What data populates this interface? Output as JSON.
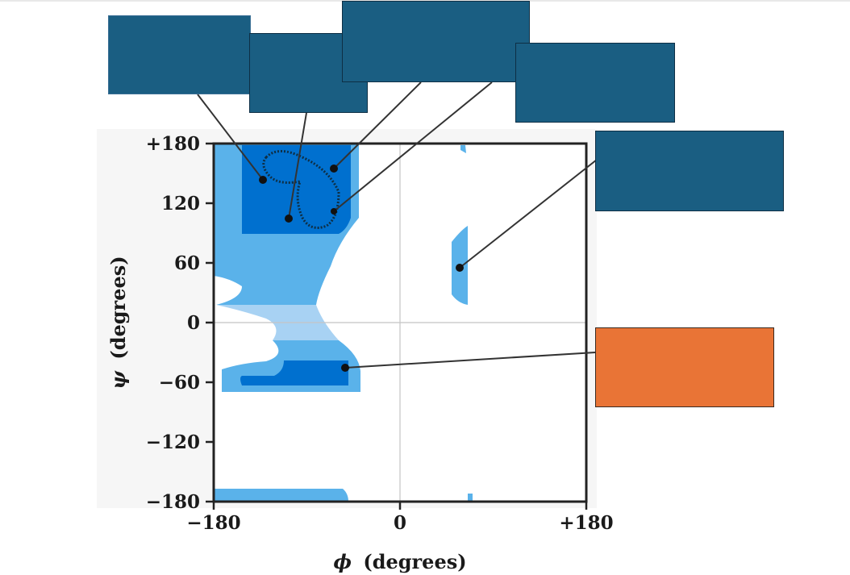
{
  "figure": {
    "y_axis": {
      "title_symbol": "ψ",
      "title_unit": "(degrees)",
      "ticks": [
        "+180",
        "120",
        "60",
        "0",
        "−60",
        "−120",
        "−180"
      ]
    },
    "x_axis": {
      "title_symbol": "ϕ",
      "title_unit": "(degrees)",
      "ticks": [
        "−180",
        "0",
        "+180"
      ]
    },
    "colors": {
      "core_region": "#0070cf",
      "allowed_region": "#5ab2ea",
      "outer_region": "#a8d2f3",
      "label_box": "#1a5e82",
      "highlight_box": "#e97436",
      "leader_line": "#333333"
    },
    "label_boxes": [
      {
        "id": "box-1",
        "style": "label_box",
        "text": ""
      },
      {
        "id": "box-2",
        "style": "label_box",
        "text": ""
      },
      {
        "id": "box-3",
        "style": "label_box",
        "text": ""
      },
      {
        "id": "box-4",
        "style": "label_box",
        "text": ""
      },
      {
        "id": "box-5",
        "style": "label_box",
        "text": ""
      },
      {
        "id": "box-6",
        "style": "highlight_box",
        "text": ""
      }
    ]
  }
}
